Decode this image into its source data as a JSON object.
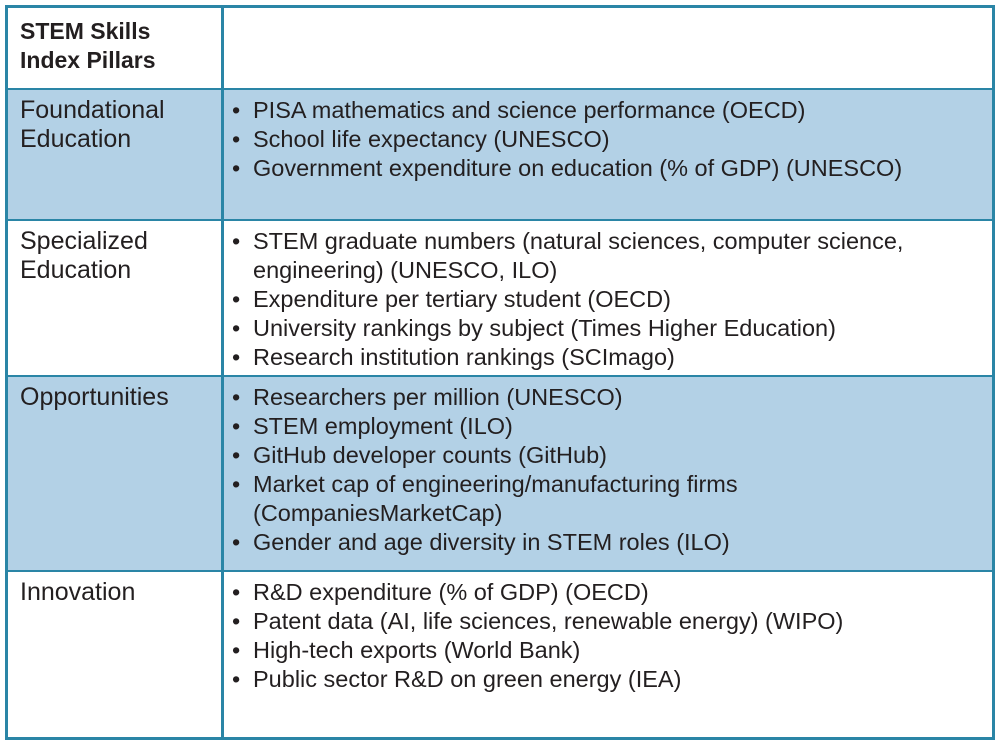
{
  "table": {
    "header": {
      "pillar": "STEM Skills Index Pillars",
      "indicators": ""
    },
    "rows": [
      {
        "pillar": "Foundational Education",
        "items": [
          "PISA mathematics and science performance (OECD)",
          "School life expectancy (UNESCO)",
          "Government expenditure on education (% of GDP) (UNESCO)"
        ]
      },
      {
        "pillar": "Specialized Education",
        "items": [
          "STEM graduate numbers (natural sciences, computer science, engineering) (UNESCO, ILO)",
          "Expenditure per tertiary student (OECD)",
          "University rankings by subject (Times Higher Education)",
          "Research institution rankings (SCImago)"
        ]
      },
      {
        "pillar": "Opportunities",
        "items": [
          "Researchers per million (UNESCO)",
          "STEM employment (ILO)",
          "GitHub developer counts (GitHub)",
          "Market cap of engineering/manufacturing firms (CompaniesMarketCap)",
          "Gender and age diversity in STEM roles (ILO)"
        ]
      },
      {
        "pillar": "Innovation",
        "items": [
          "R&D expenditure (% of GDP) (OECD)",
          "Patent data (AI, life sciences, renewable energy) (WIPO)",
          "High-tech exports (World Bank)",
          "Public sector R&D on green energy (IEA)"
        ]
      }
    ]
  },
  "colors": {
    "border": "#2a85a6",
    "shaded_row": "#b3d1e6",
    "text": "#231f20"
  }
}
